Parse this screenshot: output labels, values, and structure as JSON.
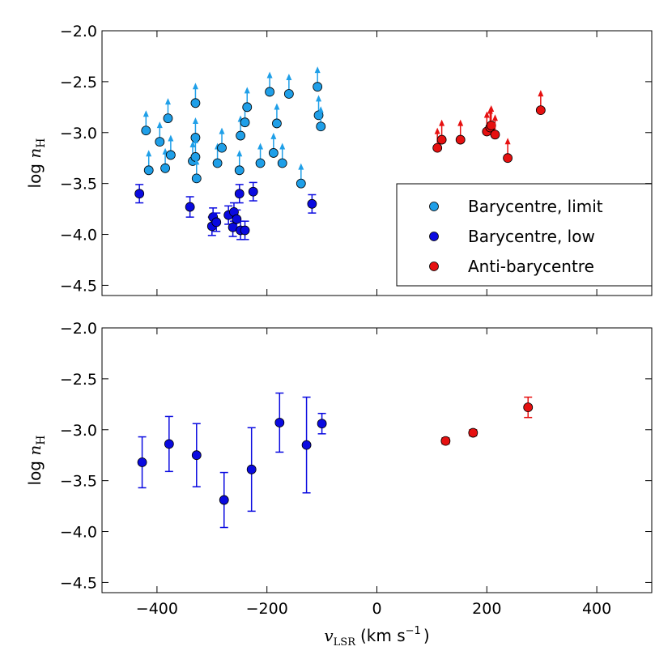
{
  "chart_data": [
    {
      "type": "scatter",
      "panel": "top",
      "xlabel": "",
      "ylabel": "log n_H",
      "ylabel_parts": {
        "prefix": "log ",
        "var": "n",
        "sub": "H"
      },
      "xlim": [
        -500,
        500
      ],
      "ylim": [
        -4.6,
        -2.0
      ],
      "xticks": [
        -400,
        -200,
        0,
        200,
        400
      ],
      "yticks": [
        -2.0,
        -2.5,
        -3.0,
        -3.5,
        -4.0,
        -4.5
      ],
      "ytick_labels": [
        "−2.0",
        "−2.5",
        "−3.0",
        "−3.5",
        "−4.0",
        "−4.5"
      ],
      "legend": {
        "location": "lower-right",
        "entries": [
          {
            "label": "Barycentre, limit",
            "color": "#1f9fe8"
          },
          {
            "label": "Barycentre, low",
            "color": "#0a0ae0"
          },
          {
            "label": "Anti-barycentre",
            "color": "#e61010"
          }
        ]
      },
      "series": [
        {
          "name": "Barycentre, limit",
          "color": "#1f9fe8",
          "marker": "lower-limit",
          "points": [
            [
              -420,
              -2.98
            ],
            [
              -415,
              -3.37
            ],
            [
              -395,
              -3.09
            ],
            [
              -385,
              -3.35
            ],
            [
              -380,
              -2.86
            ],
            [
              -375,
              -3.22
            ],
            [
              -335,
              -3.28
            ],
            [
              -330,
              -2.71
            ],
            [
              -330,
              -3.05
            ],
            [
              -330,
              -3.24
            ],
            [
              -328,
              -3.45
            ],
            [
              -290,
              -3.3
            ],
            [
              -282,
              -3.15
            ],
            [
              -250,
              -3.37
            ],
            [
              -248,
              -3.03
            ],
            [
              -240,
              -2.9
            ],
            [
              -236,
              -2.75
            ],
            [
              -212,
              -3.3
            ],
            [
              -195,
              -2.6
            ],
            [
              -188,
              -3.2
            ],
            [
              -182,
              -2.91
            ],
            [
              -172,
              -3.3
            ],
            [
              -160,
              -2.62
            ],
            [
              -138,
              -3.5
            ],
            [
              -108,
              -2.55
            ],
            [
              -106,
              -2.83
            ],
            [
              -102,
              -2.94
            ]
          ]
        },
        {
          "name": "Barycentre, low",
          "color": "#0a0ae0",
          "marker": "errorbar",
          "points": [
            [
              -432,
              -3.6,
              0.09
            ],
            [
              -340,
              -3.73,
              0.1
            ],
            [
              -300,
              -3.92,
              0.09
            ],
            [
              -298,
              -3.83,
              0.09
            ],
            [
              -292,
              -3.88,
              0.09
            ],
            [
              -270,
              -3.81,
              0.09
            ],
            [
              -262,
              -3.93,
              0.09
            ],
            [
              -260,
              -3.78,
              0.09
            ],
            [
              -255,
              -3.85,
              0.09
            ],
            [
              -250,
              -3.6,
              0.09
            ],
            [
              -248,
              -3.96,
              0.09
            ],
            [
              -240,
              -3.96,
              0.09
            ],
            [
              -225,
              -3.58,
              0.09
            ],
            [
              -118,
              -3.7,
              0.09
            ]
          ]
        },
        {
          "name": "Anti-barycentre",
          "color": "#e61010",
          "marker": "lower-limit",
          "points": [
            [
              110,
              -3.15
            ],
            [
              118,
              -3.07
            ],
            [
              152,
              -3.07
            ],
            [
              200,
              -2.99
            ],
            [
              206,
              -2.95
            ],
            [
              208,
              -2.93
            ],
            [
              215,
              -3.02
            ],
            [
              238,
              -3.25
            ],
            [
              298,
              -2.78
            ]
          ]
        }
      ]
    },
    {
      "type": "scatter",
      "panel": "bottom",
      "xlabel": "v_LSR (km s^-1)",
      "xlabel_parts": {
        "var": "v",
        "sub": "LSR",
        "unit": "(km s",
        "exp": "−1",
        "close": ")"
      },
      "ylabel": "log n_H",
      "ylabel_parts": {
        "prefix": "log ",
        "var": "n",
        "sub": "H"
      },
      "xlim": [
        -500,
        500
      ],
      "ylim": [
        -4.6,
        -2.0
      ],
      "xticks": [
        -400,
        -200,
        0,
        200,
        400
      ],
      "xtick_labels": [
        "−400",
        "−200",
        "0",
        "200",
        "400"
      ],
      "yticks": [
        -2.0,
        -2.5,
        -3.0,
        -3.5,
        -4.0,
        -4.5
      ],
      "ytick_labels": [
        "−2.0",
        "−2.5",
        "−3.0",
        "−3.5",
        "−4.0",
        "−4.5"
      ],
      "series": [
        {
          "name": "Barycentre",
          "color": "#0a0ae0",
          "marker": "errorbar",
          "points": [
            [
              -427,
              -3.32,
              0.25
            ],
            [
              -378,
              -3.14,
              0.27
            ],
            [
              -328,
              -3.25,
              0.31
            ],
            [
              -278,
              -3.69,
              0.27
            ],
            [
              -228,
              -3.39,
              0.41
            ],
            [
              -177,
              -2.93,
              0.29
            ],
            [
              -128,
              -3.15,
              0.47
            ],
            [
              -100,
              -2.94,
              0.1
            ]
          ]
        },
        {
          "name": "Anti-barycentre",
          "color": "#e61010",
          "marker": "errorbar",
          "points": [
            [
              125,
              -3.11,
              0.03
            ],
            [
              175,
              -3.03,
              0.03
            ],
            [
              275,
              -2.78,
              0.1
            ]
          ]
        }
      ]
    }
  ]
}
